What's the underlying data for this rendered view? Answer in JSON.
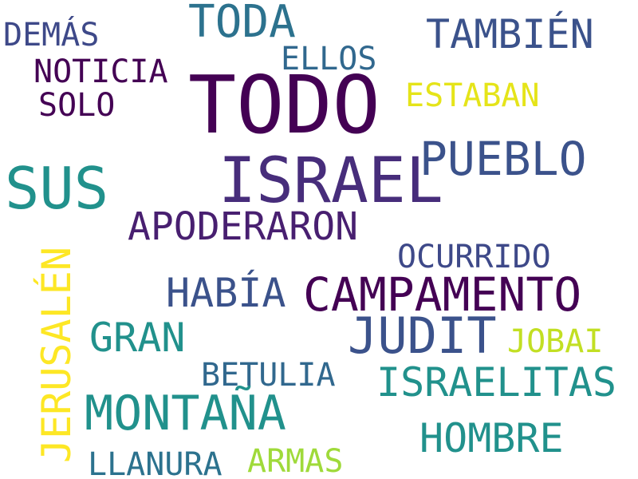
{
  "words": [
    {
      "id": "todo",
      "text": "TODO",
      "color": "#440154"
    },
    {
      "id": "israel",
      "text": "ISRAEL",
      "color": "#472d7b"
    },
    {
      "id": "sus",
      "text": "SUS",
      "color": "#21918c"
    },
    {
      "id": "pueblo",
      "text": "PUEBLO",
      "color": "#3b528b"
    },
    {
      "id": "campamento",
      "text": "CAMPAMENTO",
      "color": "#440154"
    },
    {
      "id": "montana",
      "text": "MONTAÑA",
      "color": "#21918c"
    },
    {
      "id": "judit",
      "text": "JUDIT",
      "color": "#3b528b"
    },
    {
      "id": "toda",
      "text": "TODA",
      "color": "#2c728e"
    },
    {
      "id": "tambien",
      "text": "TAMBIÉN",
      "color": "#3b528b"
    },
    {
      "id": "apoderaron",
      "text": "APODERARON",
      "color": "#481f70"
    },
    {
      "id": "jerusalen",
      "text": "JERUSALÉN",
      "color": "#fde725"
    },
    {
      "id": "hombre",
      "text": "HOMBRE",
      "color": "#21918c"
    },
    {
      "id": "israelitas",
      "text": "ISRAELITAS",
      "color": "#21918c"
    },
    {
      "id": "habia",
      "text": "HABÍA",
      "color": "#3b528b"
    },
    {
      "id": "gran",
      "text": "GRAN",
      "color": "#21918c"
    },
    {
      "id": "ocurrido",
      "text": "OCURRIDO",
      "color": "#3e4989"
    },
    {
      "id": "noticia",
      "text": "NOTICIA",
      "color": "#440154"
    },
    {
      "id": "demas",
      "text": "DEMÁS",
      "color": "#3e4989"
    },
    {
      "id": "ellos",
      "text": "ELLOS",
      "color": "#31688e"
    },
    {
      "id": "estaban",
      "text": "ESTABAN",
      "color": "#e5e419"
    },
    {
      "id": "solo",
      "text": "SOLO",
      "color": "#440154"
    },
    {
      "id": "betulia",
      "text": "BETULIA",
      "color": "#31688e"
    },
    {
      "id": "jobai",
      "text": "JOBAI",
      "color": "#c2df23"
    },
    {
      "id": "llanura",
      "text": "LLANURA",
      "color": "#2c728e"
    },
    {
      "id": "armas",
      "text": "ARMAS",
      "color": "#9fda3a"
    }
  ]
}
